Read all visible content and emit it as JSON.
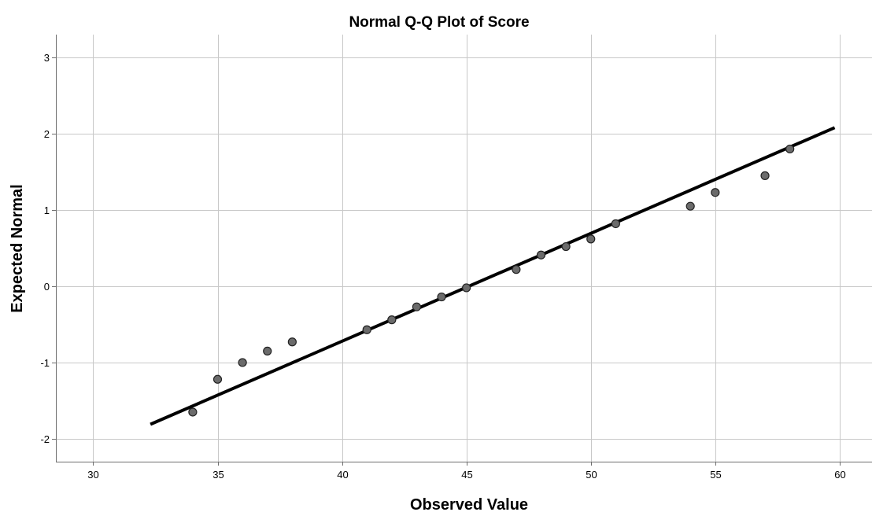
{
  "chart_data": {
    "type": "scatter",
    "title": "Normal Q-Q Plot of Score",
    "xlabel": "Observed Value",
    "ylabel": "Expected Normal",
    "xlim": [
      28.5,
      61.3
    ],
    "ylim": [
      -2.3,
      3.3
    ],
    "x_ticks": [
      30,
      35,
      40,
      45,
      50,
      55,
      60
    ],
    "y_ticks": [
      -2,
      -1,
      0,
      1,
      2,
      3
    ],
    "grid": true,
    "legend": "none",
    "points": [
      {
        "x": 34,
        "y": -1.65
      },
      {
        "x": 35,
        "y": -1.22
      },
      {
        "x": 36,
        "y": -1.0
      },
      {
        "x": 37,
        "y": -0.85
      },
      {
        "x": 38,
        "y": -0.73
      },
      {
        "x": 41,
        "y": -0.57
      },
      {
        "x": 42,
        "y": -0.44
      },
      {
        "x": 43,
        "y": -0.27
      },
      {
        "x": 44,
        "y": -0.14
      },
      {
        "x": 45,
        "y": -0.02
      },
      {
        "x": 47,
        "y": 0.22
      },
      {
        "x": 48,
        "y": 0.41
      },
      {
        "x": 49,
        "y": 0.52
      },
      {
        "x": 50,
        "y": 0.62
      },
      {
        "x": 51,
        "y": 0.82
      },
      {
        "x": 54,
        "y": 1.05
      },
      {
        "x": 55,
        "y": 1.23
      },
      {
        "x": 57,
        "y": 1.45
      },
      {
        "x": 58,
        "y": 1.8
      }
    ],
    "reference_line": {
      "x1": 32.3,
      "y1": -1.81,
      "x2": 59.8,
      "y2": 2.08
    },
    "colors": {
      "point_fill": "#6b6b6b",
      "point_stroke": "#222222",
      "line": "#000000",
      "grid": "#c8c8c8"
    }
  }
}
